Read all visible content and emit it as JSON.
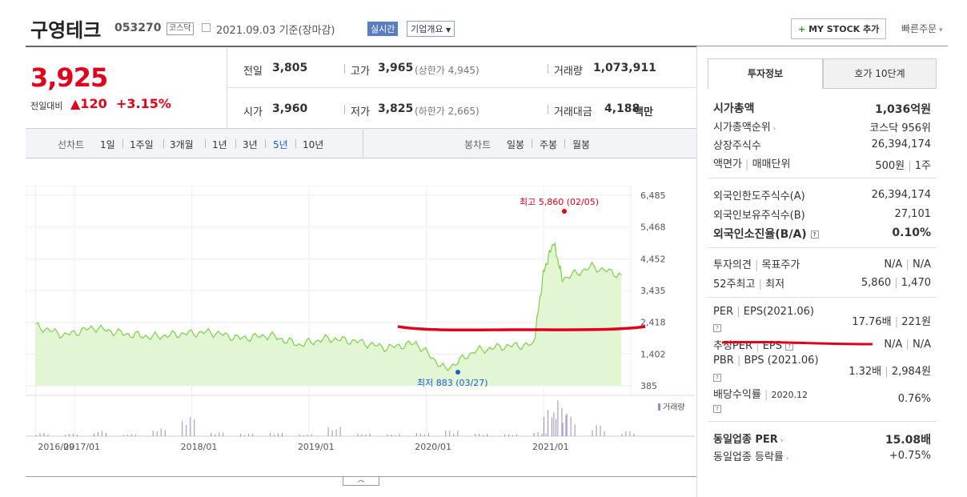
{
  "header": {
    "company": "구영테크",
    "code": "053270",
    "market": "코스닥",
    "date_text": "2021.09.03  기준(장마감)",
    "realtime": "실시간",
    "company_info": "기업개요",
    "mystock": "MY STOCK 추가",
    "quick_order": "빠른주문"
  },
  "quote": {
    "price": "3,925",
    "prev_label": "전일대비",
    "change": "▲120",
    "change_pct": "+3.15%",
    "prev_close_label": "전일",
    "prev_close": "3,805",
    "high_label": "고가",
    "high": "3,965",
    "upper_limit": "(상한가 4,945)",
    "volume_label": "거래량",
    "volume": "1,073,911",
    "open_label": "시가",
    "open": "3,960",
    "low_label": "저가",
    "low": "3,825",
    "lower_limit": "(하한가 2,665)",
    "amount_label": "거래대금",
    "amount": "4,188",
    "amount_unit": "백만"
  },
  "period_bar": {
    "line_label": "선차트",
    "periods": [
      "1일",
      "1주일",
      "3개월",
      "1년",
      "3년",
      "5년",
      "10년"
    ],
    "active": "5년",
    "candle_label": "봉차트",
    "candles": [
      "일봉",
      "주봉",
      "월봉"
    ]
  },
  "right_panel": {
    "tabs": [
      "투자정보",
      "호가 10단계"
    ],
    "market_cap_label": "시가총액",
    "market_cap": "1,036억원",
    "market_cap_rank_label": "시가총액순위",
    "market_cap_rank": "코스닥 956위",
    "shares_label": "상장주식수",
    "shares": "26,394,174",
    "par_label": "액면가",
    "unit_label": "매매단위",
    "par": "500원",
    "unit": "1주",
    "foreign_limit_label": "외국인한도주식수(A)",
    "foreign_limit": "26,394,174",
    "foreign_hold_label": "외국인보유주식수(B)",
    "foreign_hold": "27,101",
    "foreign_ratio_label": "외국인소진율(B/A)",
    "foreign_ratio": "0.10%",
    "opinion_label": "투자의견",
    "target_label": "목표주가",
    "opinion": "N/A",
    "target": "N/A",
    "w52_label": "52주최고",
    "w52_low_label": "최저",
    "w52_high": "5,860",
    "w52_low": "1,470",
    "per_label": "PER",
    "eps_label": "EPS(2021.06)",
    "per": "17.76배",
    "eps": "221원",
    "est_per_label": "추정PER",
    "est_eps_label": "EPS",
    "est_per": "N/A",
    "est_eps": "N/A",
    "pbr_label": "PBR",
    "bps_label": "BPS (2021.06)",
    "pbr": "1.32배",
    "bps": "2,984원",
    "div_label": "배당수익률",
    "div_date": "2020.12",
    "div": "0.76%",
    "sector_per_label": "동일업종 PER",
    "sector_per": "15.08배",
    "sector_rate_label": "동일업종 등락률",
    "sector_rate": "+0.75%"
  },
  "chart_data": {
    "type": "line",
    "y_ticks": [
      "6,485",
      "5,468",
      "4,452",
      "3,435",
      "2,418",
      "1,402",
      "385"
    ],
    "ylim": [
      385,
      6485
    ],
    "x_ticks": [
      "2016/09",
      "2017/01",
      "2018/01",
      "2019/01",
      "2020/01",
      "2021/01"
    ],
    "high_label": "최고 5,860 (02/05)",
    "low_label": "최저 883 (03/27)",
    "volume_label": "거래량",
    "series": [
      {
        "x": [
          "2016-09",
          "2016-12",
          "2017-03",
          "2017-06",
          "2017-09",
          "2017-12",
          "2018-03",
          "2018-06",
          "2018-09",
          "2018-12",
          "2019-03",
          "2019-06",
          "2019-09",
          "2019-12",
          "2020-03",
          "2020-06",
          "2020-09",
          "2020-12",
          "2021-01",
          "2021-02",
          "2021-03",
          "2021-06",
          "2021-09"
        ],
        "values": [
          2300,
          2000,
          2250,
          2050,
          1950,
          2050,
          2100,
          1900,
          2000,
          1700,
          1900,
          1800,
          1600,
          1750,
          900,
          1500,
          1650,
          1700,
          4000,
          5000,
          3800,
          4200,
          3925
        ]
      }
    ],
    "volume_values": [
      5,
      4,
      8,
      3,
      12,
      30,
      6,
      4,
      5,
      3,
      14,
      4,
      3,
      5,
      9,
      4,
      3,
      6,
      40,
      55,
      35,
      18,
      8
    ],
    "grid": true,
    "annotation": "red hand-drawn line near 2,418"
  }
}
